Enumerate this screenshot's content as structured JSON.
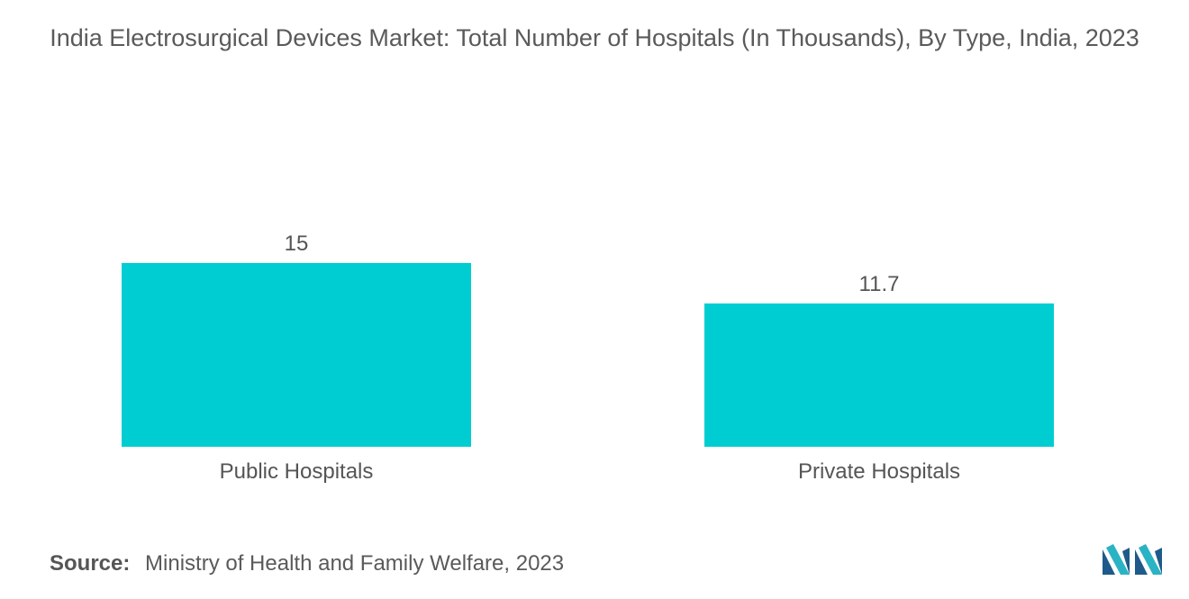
{
  "chart_data": {
    "type": "bar",
    "title": "India Electrosurgical Devices Market: Total Number of Hospitals (In Thousands), By Type, India, 2023",
    "categories": [
      "Public Hospitals",
      "Private Hospitals"
    ],
    "values": [
      15,
      11.7
    ],
    "value_labels": [
      "15",
      "11.7"
    ],
    "xlabel": "",
    "ylabel": "",
    "ylim": [
      0,
      15
    ],
    "grid": false,
    "legend": "none",
    "bar_color": "#00cdd1"
  },
  "source": {
    "label": "Source:",
    "text": "Ministry of Health and Family Welfare, 2023"
  },
  "logo": {
    "icon": "mordor-intelligence-logo-icon",
    "colors": [
      "#1e5a8a",
      "#2ab3c4"
    ]
  }
}
